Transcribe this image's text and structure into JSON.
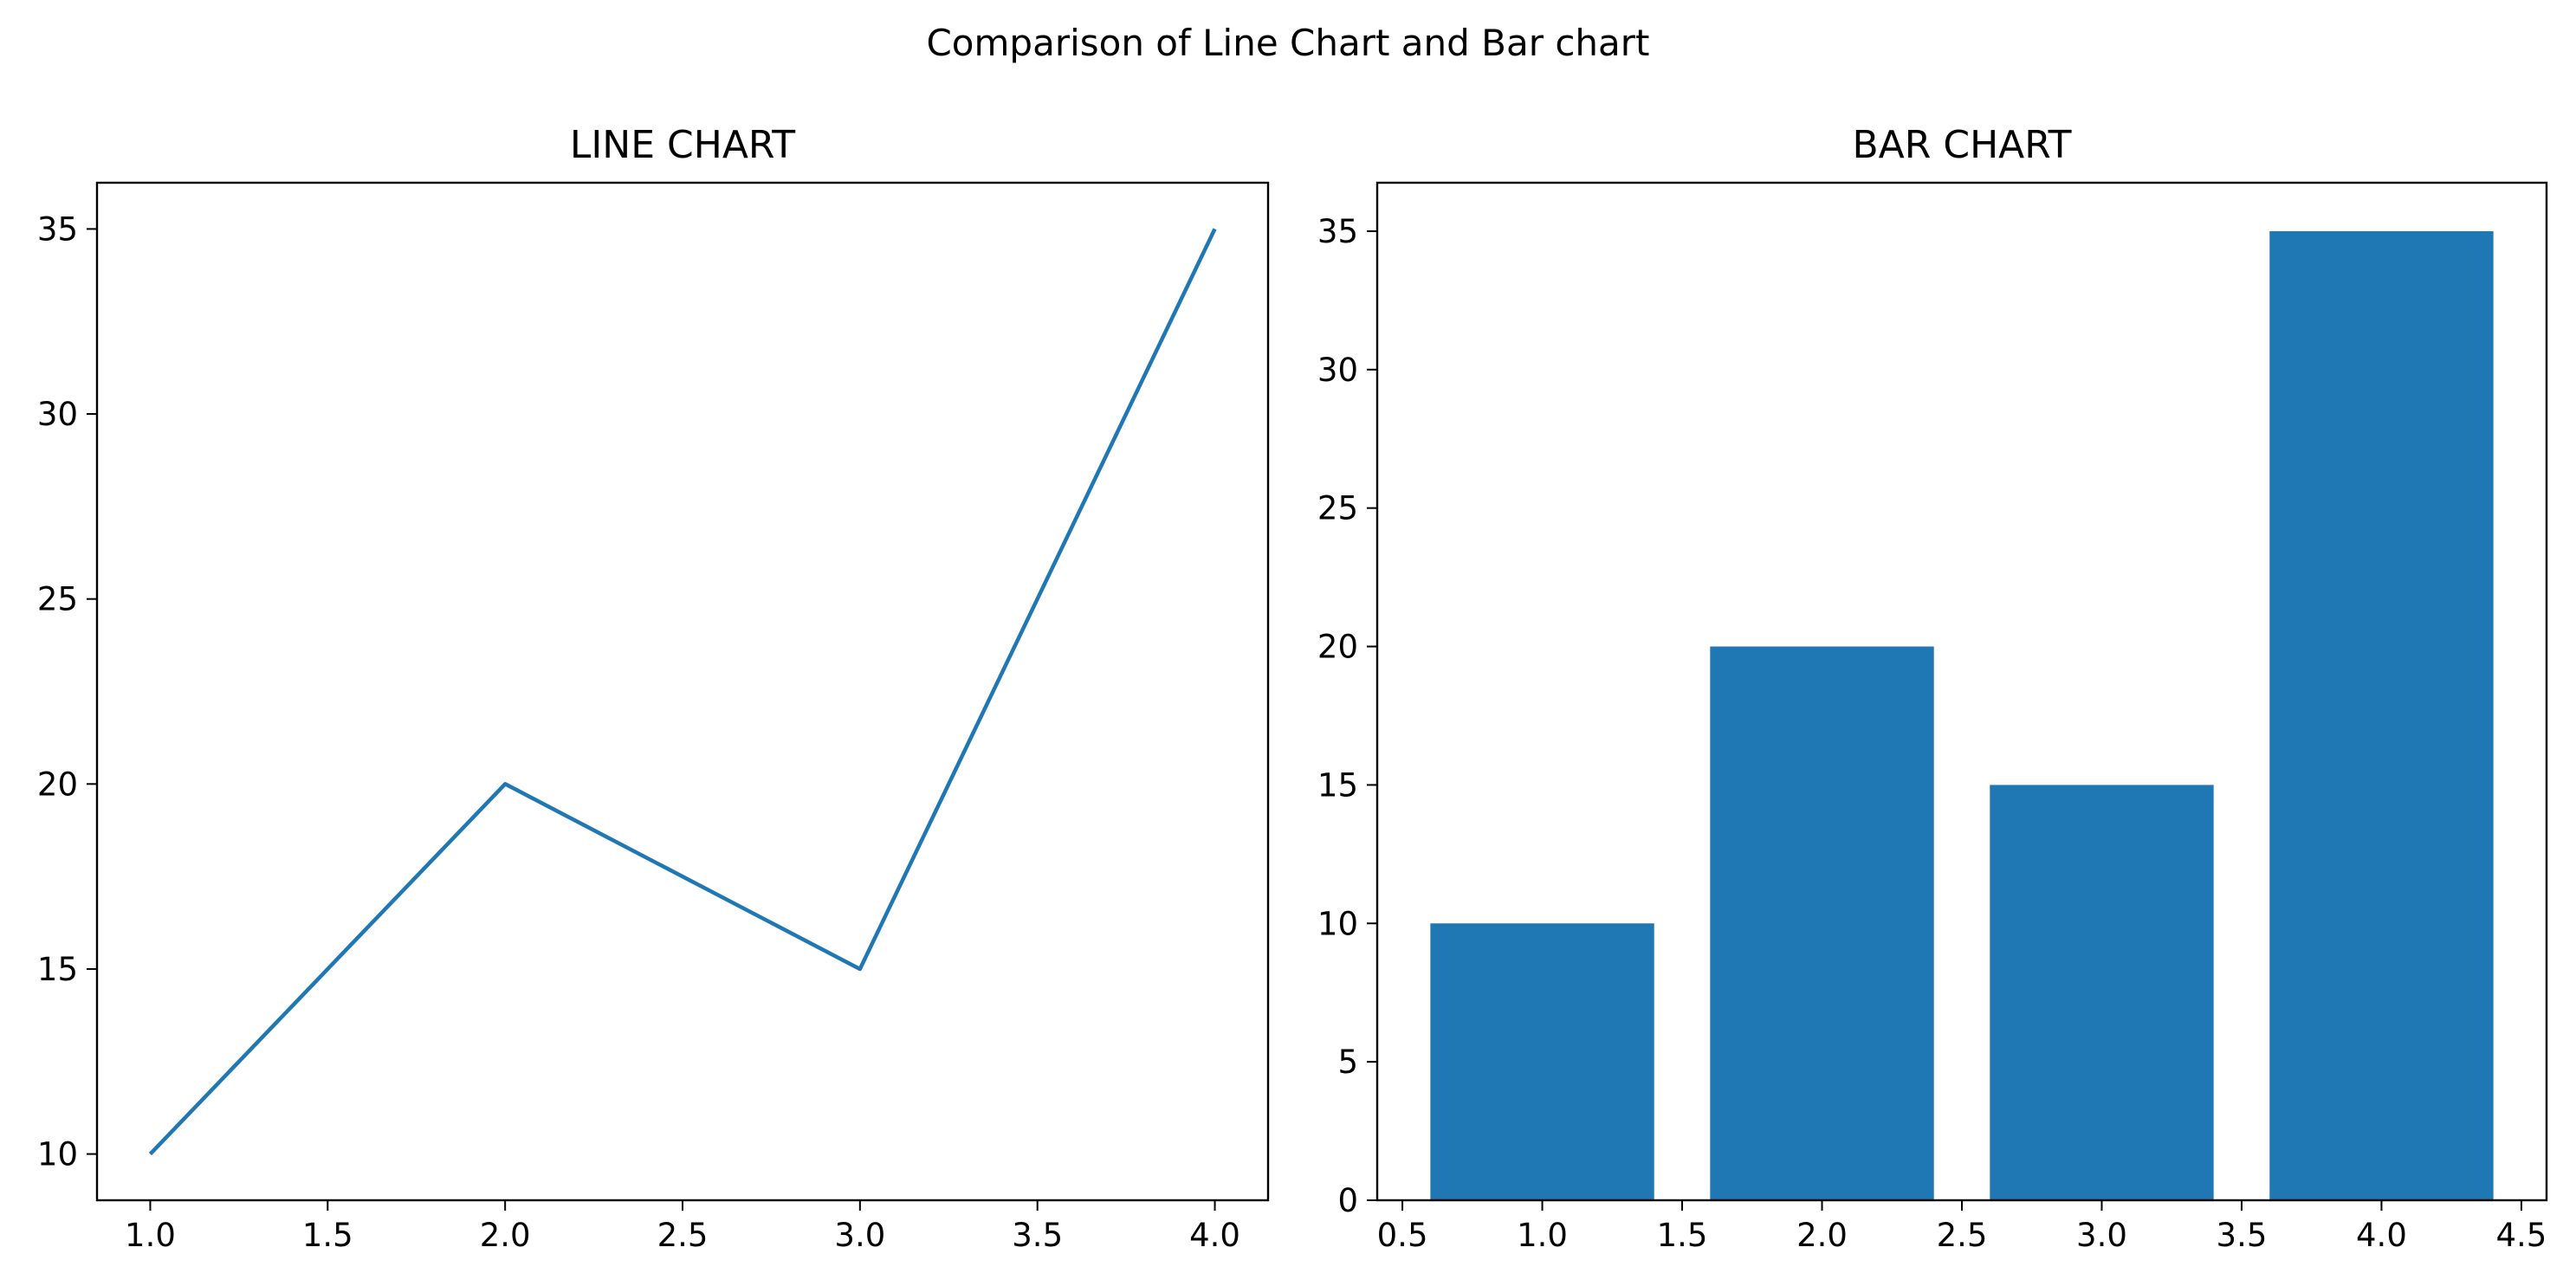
{
  "figure": {
    "suptitle": "Comparison of Line Chart and Bar chart"
  },
  "colors": {
    "series": "#1f77b4",
    "axes": "#000000",
    "background": "#ffffff"
  },
  "chart_data": [
    {
      "type": "line",
      "title": "LINE CHART",
      "xlabel": "",
      "ylabel": "",
      "x": [
        1,
        2,
        3,
        4
      ],
      "y": [
        10,
        20,
        15,
        35
      ],
      "xlim": [
        0.85,
        4.15
      ],
      "ylim": [
        8.75,
        36.25
      ],
      "xticks": [
        1.0,
        1.5,
        2.0,
        2.5,
        3.0,
        3.5,
        4.0
      ],
      "xtick_labels": [
        "1.0",
        "1.5",
        "2.0",
        "2.5",
        "3.0",
        "3.5",
        "4.0"
      ],
      "yticks": [
        10,
        15,
        20,
        25,
        30,
        35
      ],
      "ytick_labels": [
        "10",
        "15",
        "20",
        "25",
        "30",
        "35"
      ],
      "grid": false,
      "legend": false
    },
    {
      "type": "bar",
      "title": "BAR CHART",
      "xlabel": "",
      "ylabel": "",
      "categories": [
        1,
        2,
        3,
        4
      ],
      "values": [
        10,
        20,
        15,
        35
      ],
      "bar_width": 0.8,
      "xlim": [
        0.41,
        4.59
      ],
      "ylim": [
        0,
        36.75
      ],
      "xticks": [
        0.5,
        1.0,
        1.5,
        2.0,
        2.5,
        3.0,
        3.5,
        4.0,
        4.5
      ],
      "xtick_labels": [
        "0.5",
        "1.0",
        "1.5",
        "2.0",
        "2.5",
        "3.0",
        "3.5",
        "4.0",
        "4.5"
      ],
      "yticks": [
        0,
        5,
        10,
        15,
        20,
        25,
        30,
        35
      ],
      "ytick_labels": [
        "0",
        "5",
        "10",
        "15",
        "20",
        "25",
        "30",
        "35"
      ],
      "grid": false,
      "legend": false
    }
  ]
}
